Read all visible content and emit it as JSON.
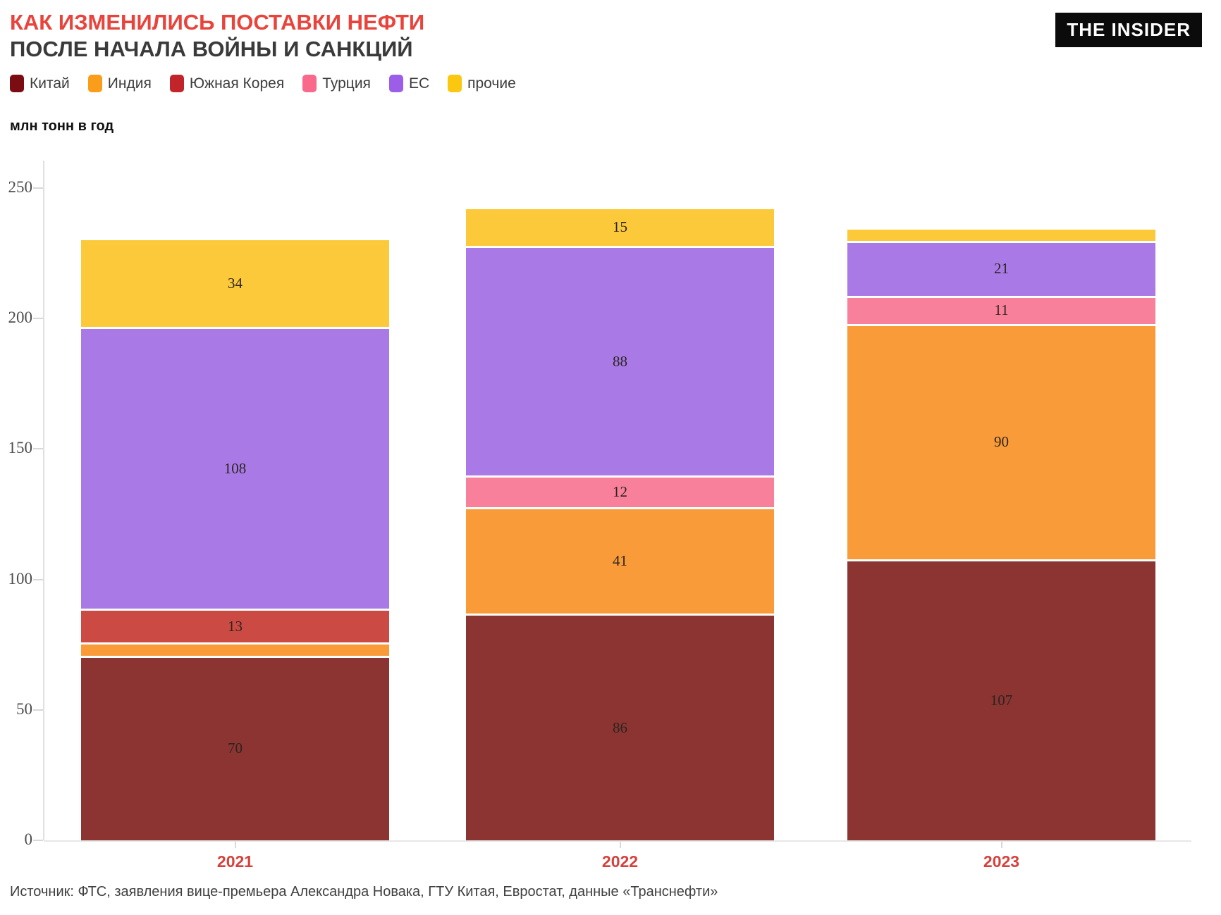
{
  "header": {
    "title_line1": "КАК ИЗМЕНИЛИСЬ ПОСТАВКИ НЕФТИ",
    "title_line2": "ПОСЛЕ НАЧАЛА ВОЙНЫ И САНКЦИЙ",
    "logo_text": "THE INSIDER"
  },
  "unit_label": "млн тонн в год",
  "footer": {
    "source": "Источник: ФТС, заявления вице-премьера Александра Новака, ГТУ Китая, Евростат, данные «Транснефти»"
  },
  "colors": {
    "title_accent": "#E8443C",
    "title_secondary": "#3A3A3A",
    "x_label_accent": "#D6413C",
    "axis_line": "#e0e0e0",
    "logo_bg": "#0b0b0b",
    "logo_fg": "#ffffff"
  },
  "chart_data": {
    "type": "bar",
    "stacked": true,
    "title": "КАК ИЗМЕНИЛИСЬ ПОСТАВКИ НЕФТИ ПОСЛЕ НАЧАЛА ВОЙНЫ И САНКЦИЙ",
    "ylabel": "млн тонн в год",
    "categories": [
      "2021",
      "2022",
      "2023"
    ],
    "series": [
      {
        "name": "Китай",
        "legend_color": "#7B0D12",
        "bar_color": "#8B3432",
        "values": [
          70,
          86,
          107
        ]
      },
      {
        "name": "Индия",
        "legend_color": "#F99D1B",
        "bar_color": "#F89B38",
        "values": [
          5,
          41,
          90
        ]
      },
      {
        "name": "Южная Корея",
        "legend_color": "#C2242B",
        "bar_color": "#CB4A44",
        "values": [
          13,
          0,
          0
        ]
      },
      {
        "name": "Турция",
        "legend_color": "#F9698C",
        "bar_color": "#F9809A",
        "values": [
          0,
          12,
          11
        ]
      },
      {
        "name": "ЕС",
        "legend_color": "#9C5EE8",
        "bar_color": "#A97AE6",
        "values": [
          108,
          88,
          21
        ]
      },
      {
        "name": "прочие",
        "legend_color": "#FCC70F",
        "bar_color": "#FBC93A",
        "values": [
          34,
          15,
          5
        ]
      }
    ],
    "totals": [
      230,
      242,
      234
    ],
    "y_ticks": [
      0,
      50,
      100,
      150,
      200,
      250
    ],
    "ylim": [
      0,
      250
    ],
    "label_min_value": 10,
    "grid": false,
    "legend_position": "top"
  }
}
